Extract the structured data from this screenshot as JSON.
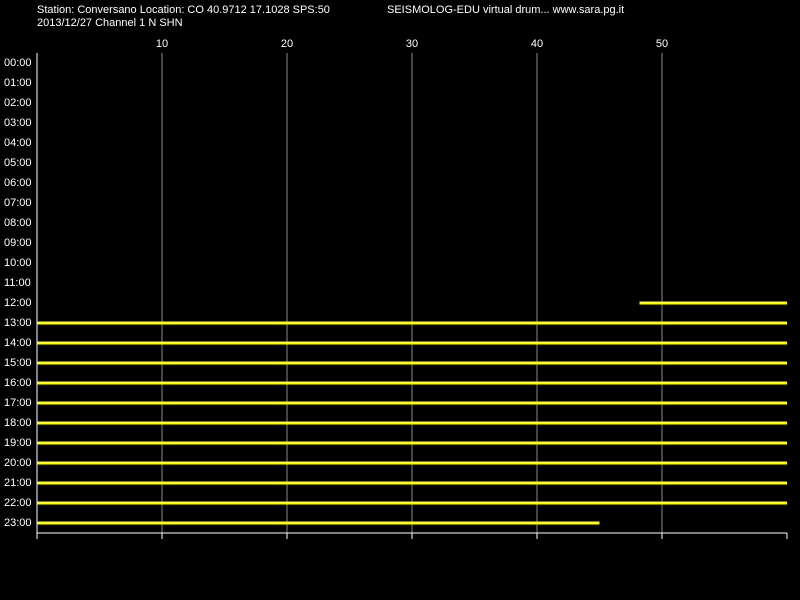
{
  "chart_data": {
    "type": "drum",
    "title": "Station: Conversano Location: CO 40.9712 17.1028 SPS:50",
    "subtitle": "SEISMOLOG-EDU virtual drum... www.sara.pg.it",
    "caption": "2013/12/27  Channel 1 N SHN",
    "categories": [
      "00:00",
      "01:00",
      "02:00",
      "03:00",
      "04:00",
      "05:00",
      "06:00",
      "07:00",
      "08:00",
      "09:00",
      "10:00",
      "11:00",
      "12:00",
      "13:00",
      "14:00",
      "15:00",
      "16:00",
      "17:00",
      "18:00",
      "19:00",
      "20:00",
      "21:00",
      "22:00",
      "23:00"
    ],
    "starts": [
      null,
      null,
      null,
      null,
      null,
      null,
      null,
      null,
      null,
      null,
      null,
      null,
      48.2,
      0,
      0,
      0,
      0,
      0,
      0,
      0,
      0,
      0,
      0,
      0
    ],
    "ends": [
      null,
      null,
      null,
      null,
      null,
      null,
      null,
      null,
      null,
      null,
      null,
      null,
      60,
      60,
      60,
      60,
      60,
      60,
      60,
      60,
      60,
      60,
      60,
      45
    ],
    "color": "#ffff00",
    "xlim": [
      0,
      60
    ],
    "xticks": [
      10,
      20,
      30,
      40,
      50
    ],
    "grid": true
  }
}
